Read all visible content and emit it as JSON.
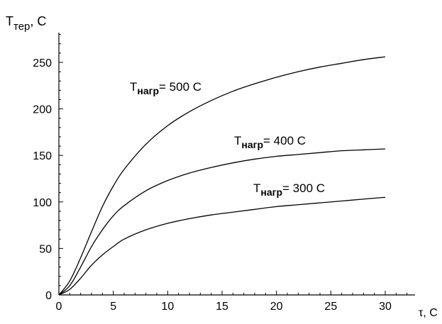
{
  "chart_data": {
    "type": "line",
    "xlim": [
      0,
      30
    ],
    "ylim": [
      0,
      250
    ],
    "x_ticks": [
      "0",
      "5",
      "10",
      "15",
      "20",
      "25",
      "30"
    ],
    "y_ticks": [
      "0",
      "50",
      "100",
      "150",
      "200",
      "250"
    ],
    "ylabel": {
      "main": "T",
      "sub": "тер",
      "rest": ", C"
    },
    "xlabel": "τ, C",
    "grid": false,
    "legend": "none",
    "series": [
      {
        "name": "T<sub>нагр</sub>= 500 C",
        "label": {
          "main": "T",
          "sub": "нагр",
          "rest": "= 500 C"
        },
        "color": "#000000",
        "x": [
          0,
          1,
          2,
          3,
          4,
          5,
          6,
          8,
          10,
          12,
          14,
          16,
          18,
          20,
          22,
          24,
          26,
          28,
          30
        ],
        "y": [
          0,
          15,
          40,
          68,
          95,
          117,
          135,
          162,
          182,
          197,
          209,
          219,
          227,
          234,
          240,
          245,
          249,
          253,
          256
        ]
      },
      {
        "name": "T<sub>нагр</sub>= 400 C",
        "label": {
          "main": "T",
          "sub": "нагр",
          "rest": "= 400 C"
        },
        "color": "#000000",
        "x": [
          0,
          1,
          2,
          3,
          4,
          5,
          6,
          8,
          10,
          12,
          14,
          16,
          18,
          20,
          22,
          24,
          26,
          28,
          30
        ],
        "y": [
          0,
          10,
          30,
          52,
          70,
          85,
          96,
          112,
          123,
          131,
          137,
          142,
          146,
          149,
          151,
          153,
          155,
          156,
          157
        ]
      },
      {
        "name": "T<sub>нагр</sub>= 300 C",
        "label": {
          "main": "T",
          "sub": "нагр",
          "rest": "= 300 C"
        },
        "color": "#000000",
        "x": [
          0,
          1,
          2,
          3,
          4,
          5,
          6,
          8,
          10,
          12,
          14,
          16,
          18,
          20,
          22,
          24,
          26,
          28,
          30
        ],
        "y": [
          0,
          6,
          18,
          32,
          43,
          52,
          60,
          70,
          77,
          82,
          86,
          89,
          92,
          95,
          97,
          99,
          101,
          103,
          105
        ]
      }
    ]
  }
}
